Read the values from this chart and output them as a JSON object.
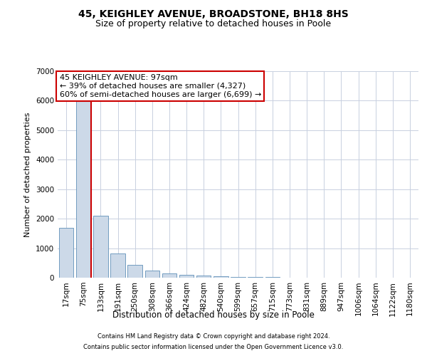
{
  "title_line1": "45, KEIGHLEY AVENUE, BROADSTONE, BH18 8HS",
  "title_line2": "Size of property relative to detached houses in Poole",
  "xlabel": "Distribution of detached houses by size in Poole",
  "ylabel": "Number of detached properties",
  "footnote1": "Contains HM Land Registry data © Crown copyright and database right 2024.",
  "footnote2": "Contains public sector information licensed under the Open Government Licence v3.0.",
  "annotation_line1": "45 KEIGHLEY AVENUE: 97sqm",
  "annotation_line2": "← 39% of detached houses are smaller (4,327)",
  "annotation_line3": "60% of semi-detached houses are larger (6,699) →",
  "bar_color": "#ccd9e8",
  "bar_edge_color": "#6090b8",
  "redline_color": "#cc0000",
  "categories": [
    "17sqm",
    "75sqm",
    "133sqm",
    "191sqm",
    "250sqm",
    "308sqm",
    "366sqm",
    "424sqm",
    "482sqm",
    "540sqm",
    "599sqm",
    "657sqm",
    "715sqm",
    "773sqm",
    "831sqm",
    "889sqm",
    "947sqm",
    "1006sqm",
    "1064sqm",
    "1122sqm",
    "1180sqm"
  ],
  "values": [
    1700,
    6050,
    2100,
    830,
    430,
    230,
    150,
    105,
    80,
    60,
    35,
    22,
    15,
    7,
    4,
    3,
    2,
    2,
    1,
    1,
    1
  ],
  "ylim": [
    0,
    7000
  ],
  "yticks": [
    0,
    1000,
    2000,
    3000,
    4000,
    5000,
    6000,
    7000
  ],
  "background_color": "#ffffff",
  "grid_color": "#c8d0e0",
  "annotation_box_facecolor": "#ffffff",
  "annotation_box_edgecolor": "#cc0000",
  "red_line_x": 1.43,
  "title1_fontsize": 10,
  "title2_fontsize": 9,
  "ylabel_fontsize": 8,
  "xlabel_fontsize": 8.5,
  "tick_fontsize": 7.5,
  "footnote_fontsize": 6.0
}
